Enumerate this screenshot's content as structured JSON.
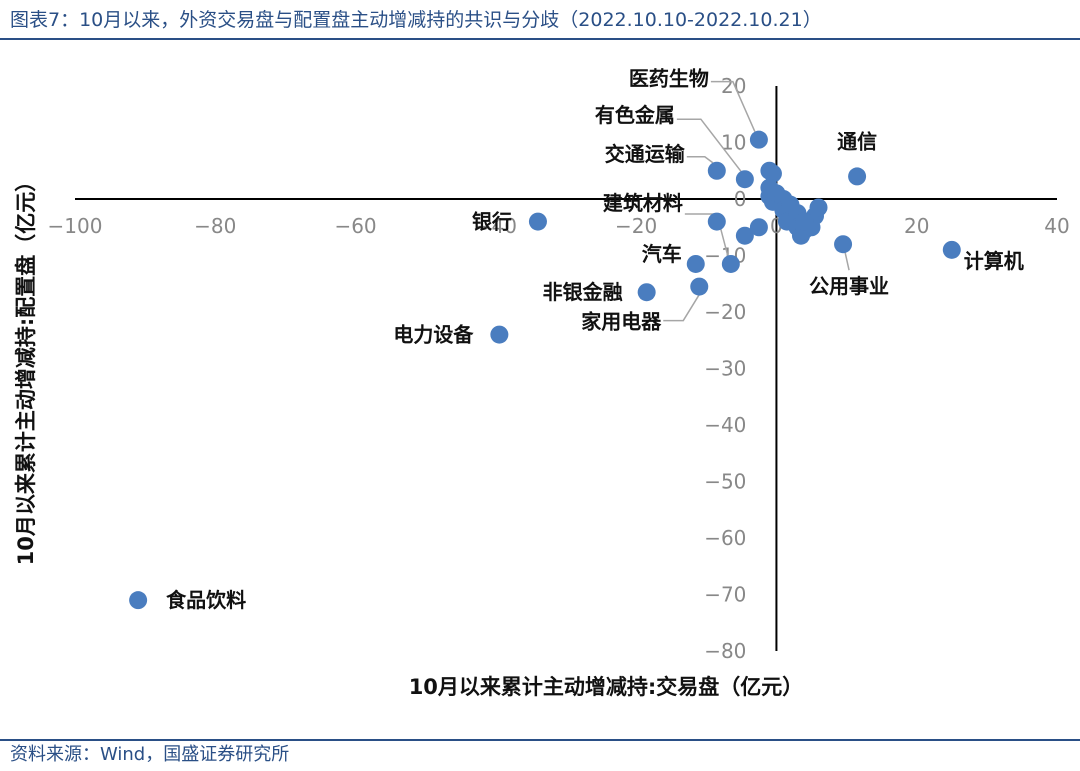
{
  "header": {
    "title": "图表7：10月以来，外资交易盘与配置盘主动增减持的共识与分歧（2022.10.10-2022.10.21）"
  },
  "footer": {
    "source": "资料来源：Wind，国盛证券研究所"
  },
  "colors": {
    "accent": "#2a4f86",
    "marker": "#4a7dbf",
    "leader": "#a6a6a6"
  },
  "chart_data": {
    "type": "scatter",
    "xlabel": "10月以来累计主动增减持:交易盘（亿元）",
    "ylabel": "10月以来累计主动增减持:配置盘（亿元）",
    "xlim": [
      -100,
      40
    ],
    "ylim": [
      -80,
      20
    ],
    "xticks": [
      "−100",
      "−80",
      "−60",
      "−40",
      "−20",
      "0",
      "20",
      "40"
    ],
    "yticks": [
      "20",
      "10",
      "0",
      "−10",
      "−20",
      "−30",
      "−40",
      "−50",
      "−60",
      "−70",
      "−80"
    ],
    "grid": false,
    "points": [
      {
        "name": "食品饮料",
        "x": -91,
        "y": -71
      },
      {
        "name": "电力设备",
        "x": -39.5,
        "y": -24
      },
      {
        "name": "银行",
        "x": -34,
        "y": -4
      },
      {
        "name": "非银金融",
        "x": -18.5,
        "y": -16.5
      },
      {
        "name": "家用电器",
        "x": -11,
        "y": -15.5
      },
      {
        "name": "汽车",
        "x": -11.5,
        "y": -11.5
      },
      {
        "name": "建筑材料",
        "x": -6.5,
        "y": -11.5
      },
      {
        "name": "",
        "x": -8.5,
        "y": -4
      },
      {
        "name": "交通运输",
        "x": -8.5,
        "y": 5
      },
      {
        "name": "有色金属",
        "x": -4.5,
        "y": 3.5
      },
      {
        "name": "医药生物",
        "x": -2.5,
        "y": 10.5
      },
      {
        "name": "",
        "x": -4.5,
        "y": -6.5
      },
      {
        "name": "",
        "x": -2.5,
        "y": -5
      },
      {
        "name": "",
        "x": -1,
        "y": 5
      },
      {
        "name": "",
        "x": -0.5,
        "y": 4.5
      },
      {
        "name": "",
        "x": -1,
        "y": 2
      },
      {
        "name": "",
        "x": -1,
        "y": 0.5
      },
      {
        "name": "",
        "x": -0.5,
        "y": -0.5
      },
      {
        "name": "",
        "x": 0,
        "y": 1
      },
      {
        "name": "",
        "x": 1,
        "y": 0
      },
      {
        "name": "",
        "x": 1,
        "y": -2
      },
      {
        "name": "",
        "x": 1.5,
        "y": -4
      },
      {
        "name": "",
        "x": 2,
        "y": -1
      },
      {
        "name": "",
        "x": 3,
        "y": -2.5
      },
      {
        "name": "",
        "x": 3,
        "y": -5
      },
      {
        "name": "",
        "x": 3.5,
        "y": -6.5
      },
      {
        "name": "",
        "x": 4,
        "y": -5.5
      },
      {
        "name": "",
        "x": 5,
        "y": -5
      },
      {
        "name": "",
        "x": 5.5,
        "y": -3
      },
      {
        "name": "",
        "x": 4,
        "y": -4
      },
      {
        "name": "",
        "x": 6,
        "y": -1.5
      },
      {
        "name": "通信",
        "x": 11.5,
        "y": 4
      },
      {
        "name": "公用事业",
        "x": 9.5,
        "y": -8
      },
      {
        "name": "计算机",
        "x": 25,
        "y": -9
      }
    ]
  }
}
